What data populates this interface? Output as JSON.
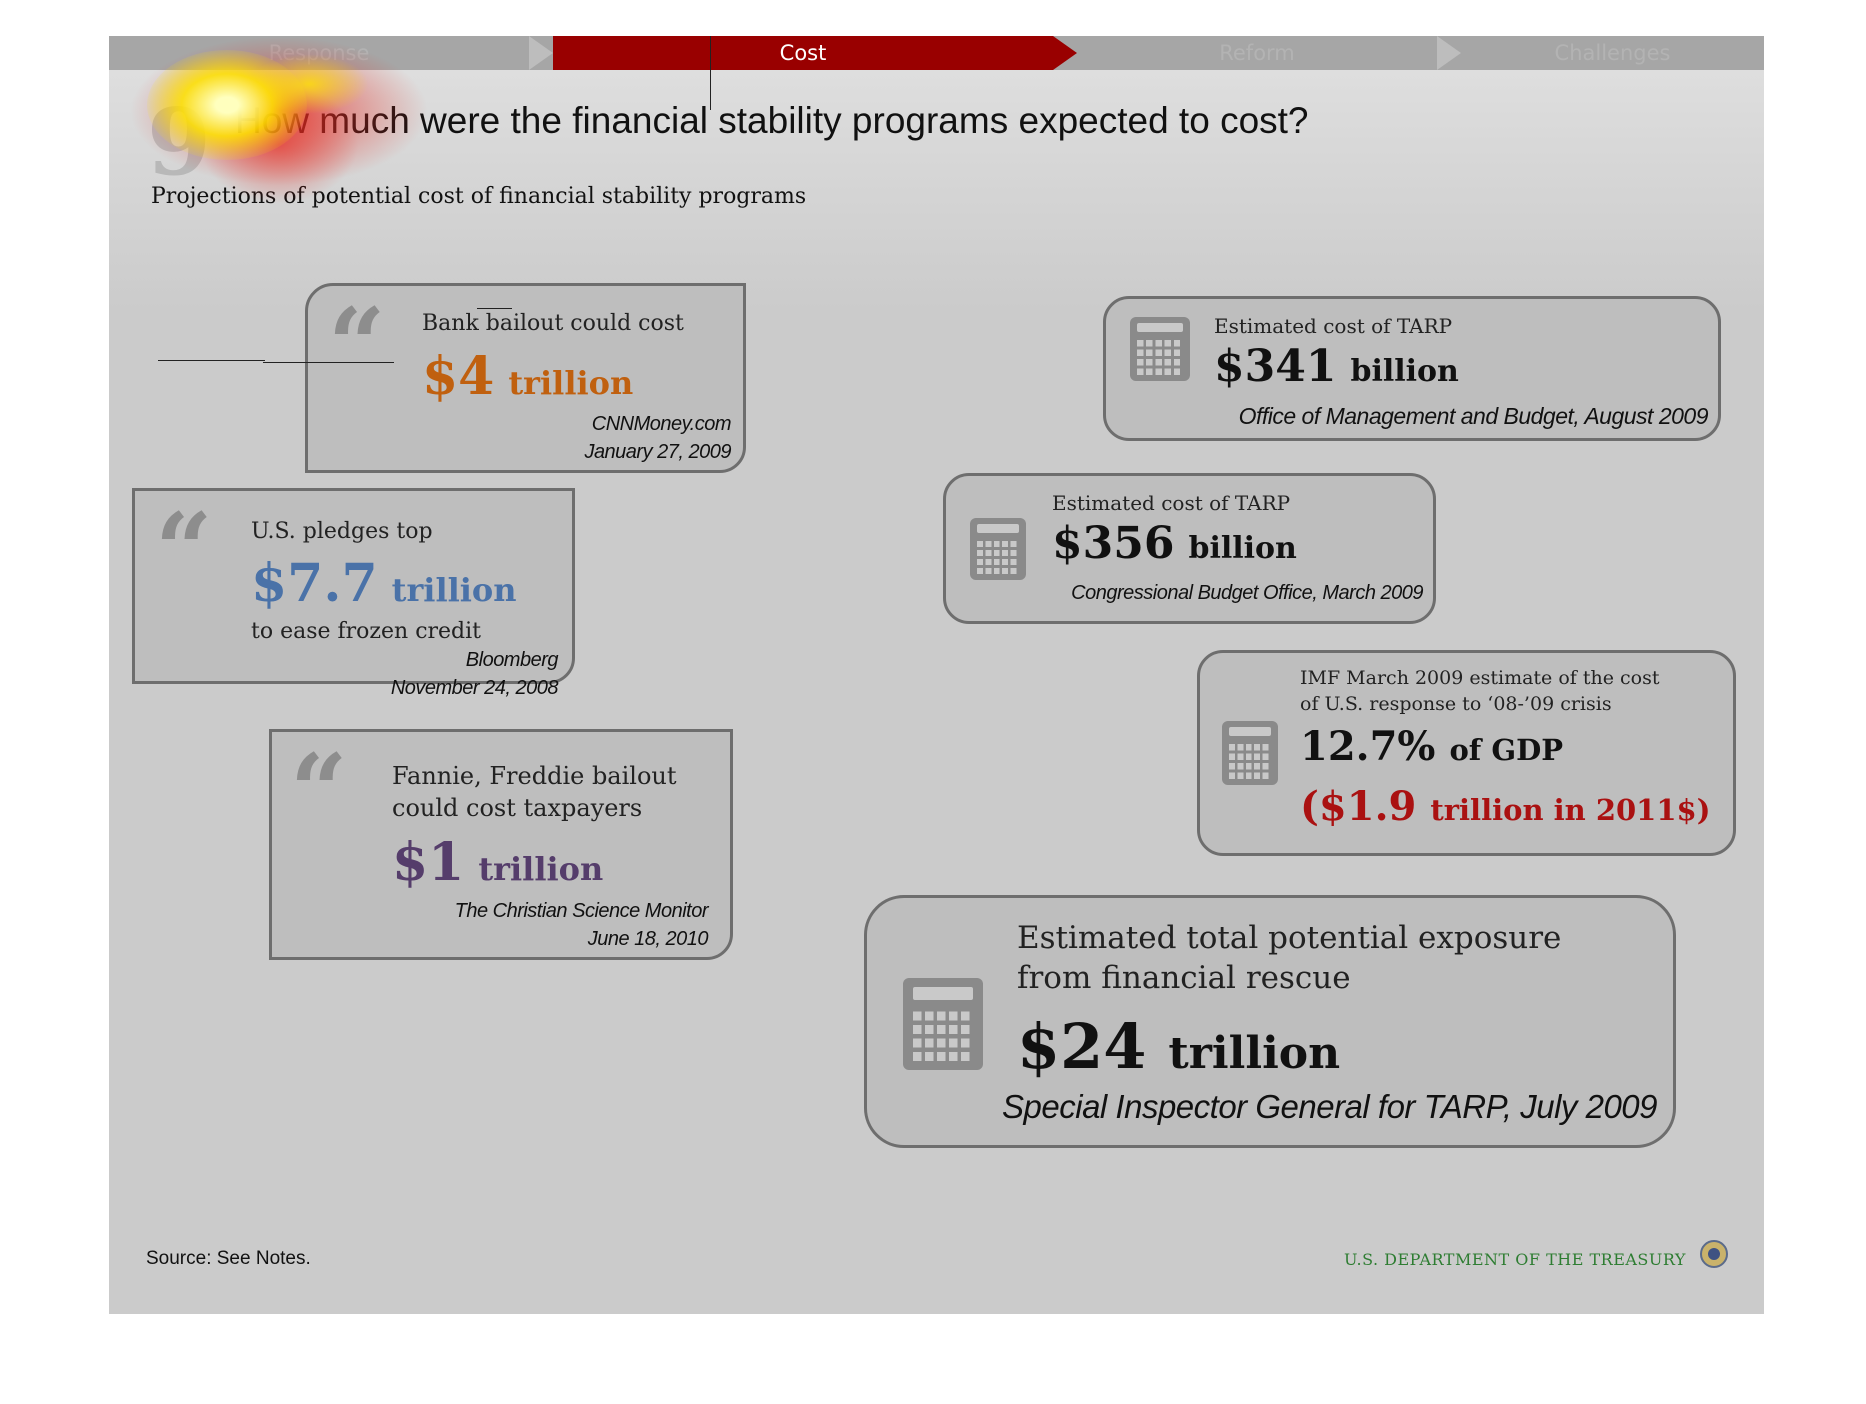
{
  "nav": {
    "tabs": [
      {
        "label": "Response",
        "active": false
      },
      {
        "label": "Cost",
        "active": true
      },
      {
        "label": "Reform",
        "active": false
      },
      {
        "label": "Challenges",
        "active": false
      }
    ]
  },
  "page": {
    "number": "9",
    "title": "How much were the financial stability programs expected to cost?",
    "subtitle": "Projections of potential cost of financial stability programs"
  },
  "quotes": [
    {
      "lead": "Bank bailout could cost",
      "amount": "$4",
      "unit": "trillion",
      "source": "CNNMoney.com",
      "date": "January 27, 2009",
      "color": "#c0600f"
    },
    {
      "lead": "U.S. pledges top",
      "amount": "$7.7",
      "unit": "trillion",
      "tail": "to ease frozen credit",
      "source": "Bloomberg",
      "date": "November 24, 2008",
      "color": "#4a72a8"
    },
    {
      "lead": "Fannie, Freddie bailout",
      "lead2": "could cost taxpayers",
      "amount": "$1",
      "unit": "trillion",
      "source": "The Christian Science Monitor",
      "date": "June 18, 2010",
      "color": "#553d6b"
    }
  ],
  "estimates": [
    {
      "label": "Estimated cost of TARP",
      "amount": "$341",
      "unit": "billion",
      "source": "Office of Management and Budget, August 2009"
    },
    {
      "label": "Estimated cost of TARP",
      "amount": "$356",
      "unit": "billion",
      "source": "Congressional Budget Office, March 2009"
    },
    {
      "label": "IMF March 2009 estimate of the cost",
      "label2": "of U.S. response to ‘08-’09 crisis",
      "amount": "12.7%",
      "unit": "of GDP",
      "alt_amount": "($1.9",
      "alt_unit": "trillion in 2011$)",
      "alt_color": "#aa1111"
    },
    {
      "label": "Estimated total potential exposure",
      "label2": "from financial rescue",
      "amount": "$24",
      "unit": "trillion",
      "source": "Special Inspector General for TARP, July 2009"
    }
  ],
  "quote_glyph": "“",
  "footer": {
    "source": "Source: See Notes.",
    "agency": "U.S. DEPARTMENT OF THE TREASURY"
  },
  "icons": {
    "quote": "quote-mark-icon",
    "calculator": "calculator-icon",
    "seal": "treasury-seal-icon"
  },
  "colors": {
    "nav_active": "#990000",
    "nav_bg": "#a6a6a6",
    "background": "#cbcbcb",
    "agency": "#2e7d32"
  }
}
